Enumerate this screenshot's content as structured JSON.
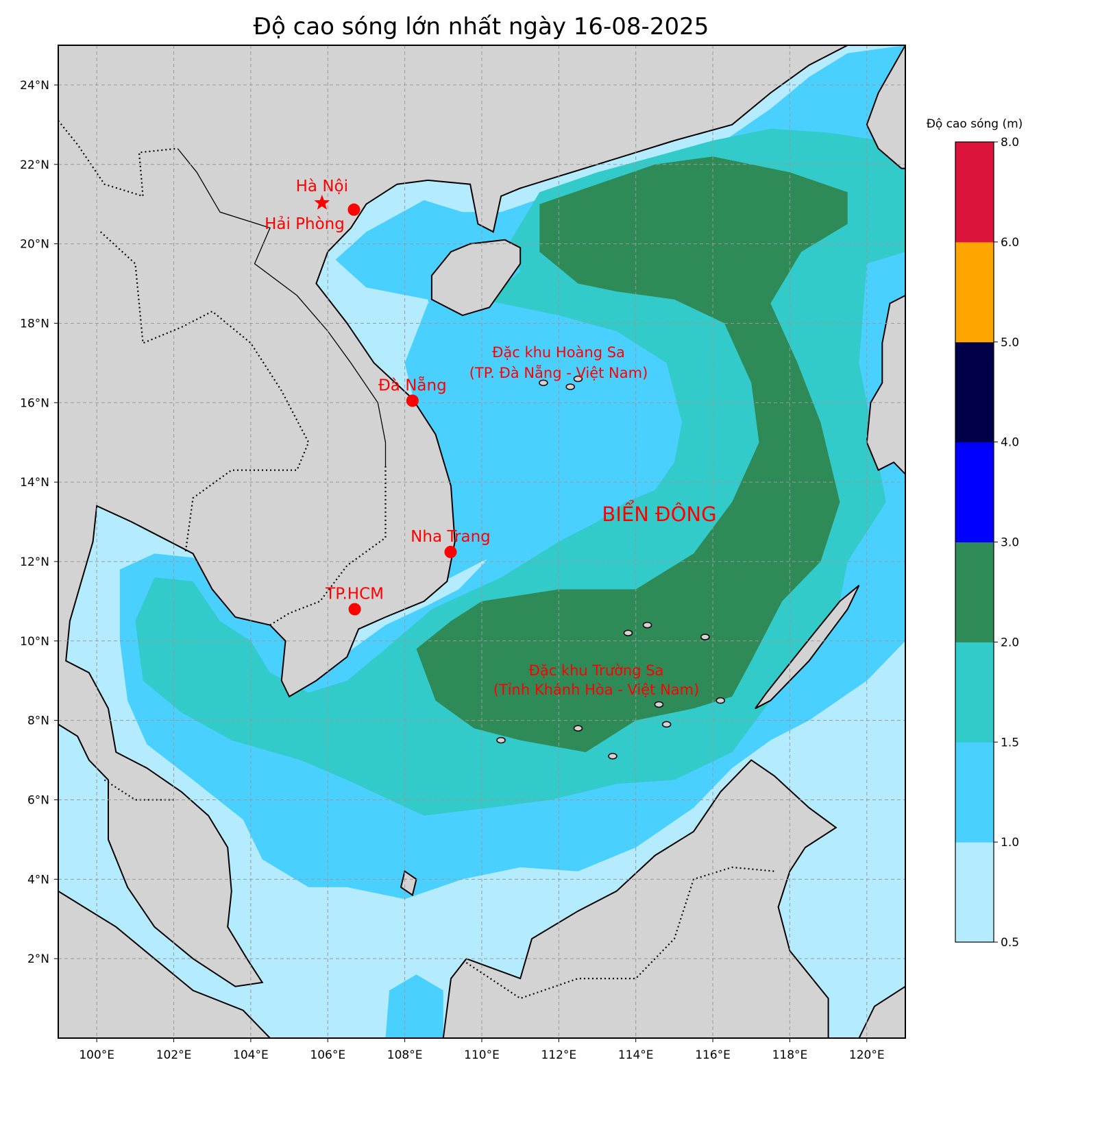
{
  "title": "Độ cao sóng lớn nhất ngày 16-08-2025",
  "map": {
    "lon_range": [
      99,
      121
    ],
    "lat_range": [
      0,
      25
    ],
    "lon_ticks": [
      "100°E",
      "102°E",
      "104°E",
      "106°E",
      "108°E",
      "110°E",
      "112°E",
      "114°E",
      "116°E",
      "118°E",
      "120°E"
    ],
    "lon_tick_values": [
      100,
      102,
      104,
      106,
      108,
      110,
      112,
      114,
      116,
      118,
      120
    ],
    "lat_ticks": [
      "2°N",
      "4°N",
      "6°N",
      "8°N",
      "10°N",
      "12°N",
      "14°N",
      "16°N",
      "18°N",
      "20°N",
      "22°N",
      "24°N"
    ],
    "lat_tick_values": [
      2,
      4,
      6,
      8,
      10,
      12,
      14,
      16,
      18,
      20,
      22,
      24
    ],
    "land_color": "#d3d3d3",
    "cities": [
      {
        "name": "Hà Nội",
        "lon": 105.85,
        "lat": 21.03,
        "marker": "star"
      },
      {
        "name": "Hải Phòng",
        "lon": 106.68,
        "lat": 20.86,
        "marker": "dot"
      },
      {
        "name": "Đà Nẵng",
        "lon": 108.2,
        "lat": 16.05,
        "marker": "dot"
      },
      {
        "name": "Nha Trang",
        "lon": 109.19,
        "lat": 12.24,
        "marker": "dot"
      },
      {
        "name": "TP.HCM",
        "lon": 106.7,
        "lat": 10.8,
        "marker": "dot"
      }
    ],
    "regions": {
      "hoang_sa_line1": "Đặc khu Hoàng Sa",
      "hoang_sa_line2": "(TP. Đà Nẵng - Việt Nam)",
      "bien_dong": "BIỂN ĐÔNG",
      "truong_sa_line1": "Đặc khu Trường Sa",
      "truong_sa_line2": "(Tỉnh Khánh Hòa - Việt Nam)"
    },
    "marker_color": "#ff0000"
  },
  "colorbar": {
    "title": "Độ cao sóng (m)",
    "levels": [
      "0.5",
      "1.0",
      "1.5",
      "2.0",
      "3.0",
      "4.0",
      "5.0",
      "6.0",
      "8.0"
    ],
    "colors": [
      "#b4ebff",
      "#4ad0ff",
      "#33caca",
      "#2e8b57",
      "#0000ff",
      "#000048",
      "#ffa500",
      "#dc143c"
    ]
  }
}
